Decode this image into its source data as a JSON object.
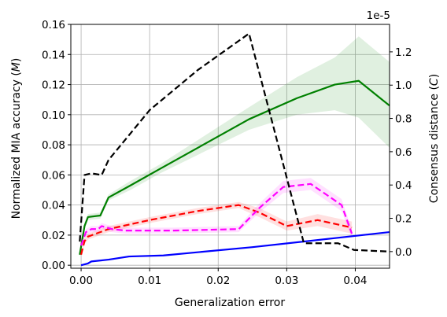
{
  "chart_data": {
    "type": "line",
    "xlabel": "Generalization error",
    "ylabel_left": "Normalized MIA accuracy (M)",
    "ylabel_left_parts": [
      "Normalized MIA accuracy (",
      "M",
      ")"
    ],
    "ylabel_right": "Consensus distance (C)",
    "ylabel_right_parts": [
      "Consensus distance (",
      "C",
      ")"
    ],
    "right_axis_offset": "1e-5",
    "xlim": [
      -0.0015,
      0.045
    ],
    "ylim_left": [
      -0.002,
      0.16
    ],
    "ylim_right": [
      -1e-06,
      1.365e-05
    ],
    "grid": true,
    "x_ticks": [
      0.0,
      0.01,
      0.02,
      0.03,
      0.04
    ],
    "x_tick_labels": [
      "0.00",
      "0.01",
      "0.02",
      "0.03",
      "0.04"
    ],
    "y_left_ticks": [
      0.0,
      0.02,
      0.04,
      0.06,
      0.08,
      0.1,
      0.12,
      0.14,
      0.16
    ],
    "y_left_tick_labels": [
      "0.00",
      "0.02",
      "0.04",
      "0.06",
      "0.08",
      "0.10",
      "0.12",
      "0.14",
      "0.16"
    ],
    "y_right_ticks": [
      0.0,
      2e-06,
      4e-06,
      6e-06,
      8e-06,
      1e-05,
      1.2e-05
    ],
    "y_right_tick_labels": [
      "0.0",
      "0.2",
      "0.4",
      "0.6",
      "0.8",
      "1.0",
      "1.2"
    ],
    "series": [
      {
        "color": "#0000ff",
        "dash": "solid",
        "axis": "left",
        "x": [
          0.0,
          0.001,
          0.0015,
          0.004,
          0.007,
          0.012,
          0.025,
          0.045
        ],
        "y": [
          0.0,
          0.0012,
          0.0025,
          0.0037,
          0.0058,
          0.0065,
          0.012,
          0.022
        ],
        "band_lower": [],
        "band_upper": []
      },
      {
        "color": "#008000",
        "dash": "solid",
        "axis": "left",
        "x": [
          -0.0002,
          0.0005,
          0.001,
          0.0028,
          0.004,
          0.0072,
          0.0115,
          0.0245,
          0.0315,
          0.037,
          0.0405,
          0.045
        ],
        "y": [
          0.007,
          0.026,
          0.032,
          0.033,
          0.045,
          0.053,
          0.064,
          0.097,
          0.111,
          0.12,
          0.1225,
          0.106
        ],
        "band_lower": [
          0.006,
          0.024,
          0.03,
          0.031,
          0.043,
          0.05,
          0.061,
          0.09,
          0.1,
          0.103,
          0.098,
          0.078
        ],
        "band_upper": [
          0.008,
          0.028,
          0.034,
          0.035,
          0.047,
          0.056,
          0.067,
          0.105,
          0.125,
          0.138,
          0.152,
          0.135
        ]
      },
      {
        "color": "#ff0000",
        "dash": "dashed",
        "axis": "left",
        "x": [
          0.0,
          0.0005,
          0.001,
          0.004,
          0.01,
          0.017,
          0.023,
          0.026,
          0.03,
          0.0345,
          0.0395
        ],
        "y": [
          0.007,
          0.016,
          0.019,
          0.024,
          0.03,
          0.036,
          0.04,
          0.035,
          0.026,
          0.03,
          0.025
        ],
        "band_lower": [
          0.006,
          0.014,
          0.017,
          0.022,
          0.028,
          0.034,
          0.038,
          0.032,
          0.023,
          0.026,
          0.021
        ],
        "band_upper": [
          0.008,
          0.018,
          0.021,
          0.026,
          0.032,
          0.038,
          0.042,
          0.038,
          0.029,
          0.034,
          0.029
        ]
      },
      {
        "color": "#ff00ff",
        "dash": "dashed",
        "axis": "left",
        "x": [
          0.0,
          0.0007,
          0.0015,
          0.0025,
          0.003,
          0.0045,
          0.0065,
          0.0135,
          0.023,
          0.026,
          0.0295,
          0.0335,
          0.038,
          0.0395
        ],
        "y": [
          0.013,
          0.022,
          0.024,
          0.024,
          0.026,
          0.024,
          0.023,
          0.023,
          0.024,
          0.038,
          0.052,
          0.054,
          0.04,
          0.021
        ],
        "band_lower": [
          0.012,
          0.02,
          0.022,
          0.022,
          0.024,
          0.022,
          0.021,
          0.021,
          0.022,
          0.035,
          0.048,
          0.05,
          0.036,
          0.018
        ],
        "band_upper": [
          0.014,
          0.024,
          0.026,
          0.026,
          0.028,
          0.026,
          0.025,
          0.025,
          0.026,
          0.041,
          0.056,
          0.058,
          0.044,
          0.024
        ]
      },
      {
        "color": "#000000",
        "dash": "dashed",
        "axis": "right",
        "x": [
          -0.0002,
          0.0005,
          0.0015,
          0.003,
          0.004,
          0.01,
          0.017,
          0.0245,
          0.0325,
          0.0375,
          0.0398,
          0.045
        ],
        "y": [
          6e-07,
          4.6e-06,
          4.7e-06,
          4.6e-06,
          5.5e-06,
          8.5e-06,
          1.09e-05,
          1.31e-05,
          5e-07,
          5e-07,
          1e-07,
          0.0
        ]
      }
    ]
  }
}
